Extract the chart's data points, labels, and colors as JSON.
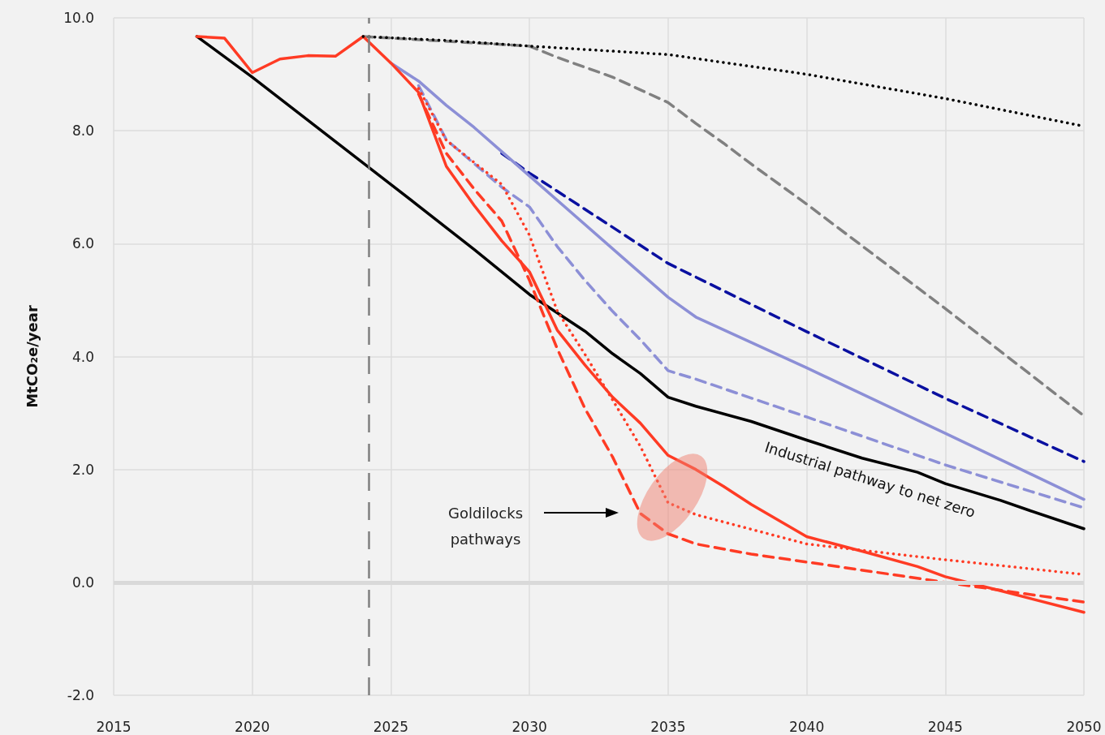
{
  "chart_data": {
    "type": "line",
    "ylabel": "MtCO₂e/year",
    "xlim": [
      2015,
      2050
    ],
    "xticks": [
      2015,
      2020,
      2025,
      2030,
      2035,
      2040,
      2045,
      2050
    ],
    "ylim": [
      -2,
      10
    ],
    "yticks": [
      {
        "value": -2,
        "label": "-2.0"
      },
      {
        "value": 0,
        "label": "0.0"
      },
      {
        "value": 2,
        "label": "2.0"
      },
      {
        "value": 4,
        "label": "4.0"
      },
      {
        "value": 6,
        "label": "6.0"
      },
      {
        "value": 8,
        "label": "8.0"
      },
      {
        "value": 10,
        "label": "10.0"
      }
    ],
    "grid": true,
    "marker": "none",
    "series": [
      {
        "color": "#000000",
        "line_style": "dotted",
        "x": [
          2024,
          2027,
          2030,
          2035,
          2040,
          2045,
          2050
        ],
        "values": [
          9.67,
          9.6,
          9.5,
          9.35,
          9.0,
          8.57,
          8.08
        ]
      },
      {
        "color": "#808080",
        "line_style": "dashed",
        "x": [
          2024,
          2030,
          2031,
          2033,
          2035,
          2036,
          2037,
          2038,
          2040,
          2045,
          2050
        ],
        "values": [
          9.67,
          9.5,
          9.3,
          8.95,
          8.5,
          8.13,
          7.78,
          7.41,
          6.7,
          4.85,
          2.95
        ]
      },
      {
        "color": "#0a10a0",
        "line_style": "dashed",
        "x": [
          2029,
          2030,
          2035,
          2040,
          2045,
          2050
        ],
        "values": [
          7.6,
          7.25,
          5.65,
          4.44,
          3.26,
          2.14
        ]
      },
      {
        "color": "#8c8fd6",
        "line_style": "solid",
        "x": [
          2025,
          2026,
          2027,
          2028,
          2029,
          2030,
          2035,
          2036,
          2040,
          2045,
          2050
        ],
        "values": [
          9.2,
          8.88,
          8.45,
          8.06,
          7.63,
          7.2,
          5.05,
          4.7,
          3.8,
          2.64,
          1.47
        ]
      },
      {
        "color": "#8c8fd6",
        "line_style": "dashed",
        "x": [
          2026,
          2027,
          2029,
          2030,
          2031,
          2032,
          2033,
          2034,
          2035,
          2036,
          2040,
          2045,
          2050
        ],
        "values": [
          8.8,
          7.84,
          7.0,
          6.65,
          5.95,
          5.35,
          4.8,
          4.3,
          3.75,
          3.6,
          2.93,
          2.08,
          1.32
        ]
      },
      {
        "name": "Industrial pathway to net zero",
        "color": "#000000",
        "line_style": "solid",
        "x": [
          2018,
          2020,
          2025,
          2028,
          2030,
          2032,
          2033,
          2034,
          2035,
          2036,
          2038,
          2040,
          2042,
          2044,
          2045,
          2047,
          2048,
          2050
        ],
        "values": [
          9.67,
          8.95,
          7.05,
          5.9,
          5.1,
          4.45,
          4.05,
          3.7,
          3.28,
          3.12,
          2.85,
          2.52,
          2.2,
          1.95,
          1.75,
          1.45,
          1.28,
          0.95
        ]
      },
      {
        "color": "#ff3b24",
        "line_style": "dotted",
        "x": [
          2026,
          2027,
          2028,
          2029,
          2030,
          2031,
          2032,
          2033,
          2034,
          2035,
          2036,
          2040,
          2045,
          2050
        ],
        "values": [
          8.75,
          7.83,
          7.44,
          7.05,
          6.15,
          4.81,
          4.04,
          3.23,
          2.41,
          1.41,
          1.2,
          0.68,
          0.4,
          0.14
        ]
      },
      {
        "color": "#ff3b24",
        "line_style": "dashed",
        "x": [
          2026,
          2027,
          2028,
          2029,
          2030,
          2031,
          2032,
          2033,
          2034,
          2035,
          2036,
          2038,
          2040,
          2045,
          2050
        ],
        "values": [
          8.65,
          7.6,
          6.97,
          6.4,
          5.35,
          4.14,
          3.08,
          2.22,
          1.22,
          0.86,
          0.68,
          0.5,
          0.36,
          0.0,
          -0.35
        ]
      },
      {
        "color": "#ff3b24",
        "line_style": "solid",
        "x": [
          2018,
          2019,
          2020,
          2021,
          2022,
          2023,
          2024,
          2025,
          2026,
          2027,
          2028,
          2029,
          2030,
          2031,
          2032,
          2033,
          2034,
          2035,
          2036,
          2037,
          2038,
          2040,
          2042,
          2044,
          2045,
          2047,
          2050
        ],
        "values": [
          9.67,
          9.64,
          9.03,
          9.27,
          9.33,
          9.32,
          9.67,
          9.2,
          8.68,
          7.37,
          6.68,
          6.05,
          5.5,
          4.47,
          3.85,
          3.28,
          2.82,
          2.25,
          2.0,
          1.7,
          1.38,
          0.81,
          0.55,
          0.28,
          0.1,
          -0.15,
          -0.53
        ]
      }
    ],
    "ref_lines": [
      {
        "axis": "x",
        "value": 2024.2,
        "color": "#808080",
        "line_style": "dashed"
      },
      {
        "axis": "y",
        "value": 0,
        "color": "#d9d9d9",
        "line_style": "solid"
      }
    ],
    "annotations": [
      "Goldilocks\npathways"
    ]
  }
}
